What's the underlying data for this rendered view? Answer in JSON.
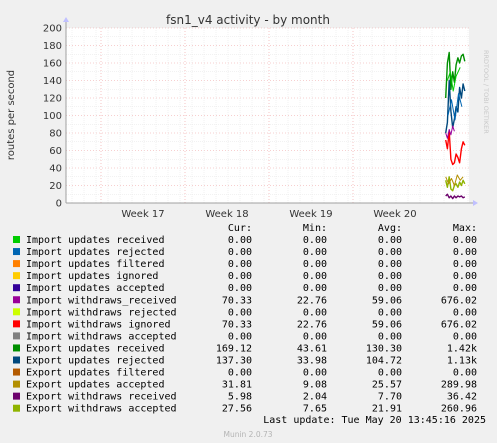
{
  "chart_data": {
    "type": "line",
    "title": "fsn1_v4 activity - by month",
    "ylabel": "routes per second",
    "side_label": "RRDTOOL / TOBI OETIKER",
    "ylim": [
      0,
      200
    ],
    "y_ticks": [
      0,
      10,
      20,
      30,
      40,
      50,
      60,
      70,
      80,
      90,
      100,
      110,
      120,
      130,
      140,
      150,
      160,
      170,
      180,
      190,
      200
    ],
    "x_ticks": [
      "Week 17",
      "Week 18",
      "Week 19",
      "Week 20"
    ],
    "grid": true,
    "legend_headers": [
      "Cur:",
      "Min:",
      "Avg:",
      "Max:"
    ],
    "series": [
      {
        "name": "Import updates received",
        "color": "#00cc00",
        "cur": "0.00",
        "min": "0.00",
        "avg": "0.00",
        "max": "0.00"
      },
      {
        "name": "Import updates rejected",
        "color": "#0066b3",
        "cur": "0.00",
        "min": "0.00",
        "avg": "0.00",
        "max": "0.00"
      },
      {
        "name": "Import updates filtered",
        "color": "#ff8000",
        "cur": "0.00",
        "min": "0.00",
        "avg": "0.00",
        "max": "0.00"
      },
      {
        "name": "Import updates ignored",
        "color": "#ffcc00",
        "cur": "0.00",
        "min": "0.00",
        "avg": "0.00",
        "max": "0.00"
      },
      {
        "name": "Import updates accepted",
        "color": "#330099",
        "cur": "0.00",
        "min": "0.00",
        "avg": "0.00",
        "max": "0.00"
      },
      {
        "name": "Import withdraws_received",
        "color": "#990099",
        "cur": "70.33",
        "min": "22.76",
        "avg": "59.06",
        "max": "676.02"
      },
      {
        "name": "Import withdraws rejected",
        "color": "#ccff00",
        "cur": "0.00",
        "min": "0.00",
        "avg": "0.00",
        "max": "0.00"
      },
      {
        "name": "Import withdraws ignored",
        "color": "#ff0000",
        "cur": "70.33",
        "min": "22.76",
        "avg": "59.06",
        "max": "676.02"
      },
      {
        "name": "Import withdraws accepted",
        "color": "#808080",
        "cur": "0.00",
        "min": "0.00",
        "avg": "0.00",
        "max": "0.00"
      },
      {
        "name": "Export updates received",
        "color": "#008f00",
        "cur": "169.12",
        "min": "43.61",
        "avg": "130.30",
        "max": "1.42k"
      },
      {
        "name": "Export updates rejected",
        "color": "#00487d",
        "cur": "137.30",
        "min": "33.98",
        "avg": "104.72",
        "max": "1.13k"
      },
      {
        "name": "Export updates filtered",
        "color": "#b35a00",
        "cur": "0.00",
        "min": "0.00",
        "avg": "0.00",
        "max": "0.00"
      },
      {
        "name": "Export updates accepted",
        "color": "#b38f00",
        "cur": "31.81",
        "min": "9.08",
        "avg": "25.57",
        "max": "289.98"
      },
      {
        "name": "Export withdraws received",
        "color": "#6b006b",
        "cur": "5.98",
        "min": "2.04",
        "avg": "7.70",
        "max": "36.42"
      },
      {
        "name": "Export withdraws accepted",
        "color": "#8fb300",
        "cur": "27.56",
        "min": "7.65",
        "avg": "21.91",
        "max": "260.96"
      }
    ],
    "traces": [
      {
        "color": "#008f00",
        "width": 1.4,
        "points": [
          [
            0.3,
            120
          ],
          [
            0.36,
            160
          ],
          [
            0.42,
            172
          ],
          [
            0.48,
            130
          ],
          [
            0.54,
            150
          ],
          [
            0.6,
            138
          ],
          [
            0.66,
            158
          ],
          [
            0.72,
            166
          ],
          [
            0.78,
            160
          ],
          [
            0.84,
            168
          ],
          [
            0.9,
            170
          ],
          [
            0.96,
            162
          ]
        ]
      },
      {
        "color": "#00cc00",
        "width": 1.0,
        "points": [
          [
            0.36,
            140
          ],
          [
            0.46,
            150
          ],
          [
            0.56,
            128
          ],
          [
            0.66,
            145
          ],
          [
            0.8,
            155
          ]
        ]
      },
      {
        "color": "#00487d",
        "width": 1.4,
        "points": [
          [
            0.3,
            80
          ],
          [
            0.36,
            92
          ],
          [
            0.42,
            140
          ],
          [
            0.48,
            105
          ],
          [
            0.54,
            86
          ],
          [
            0.6,
            96
          ],
          [
            0.66,
            110
          ],
          [
            0.72,
            104
          ],
          [
            0.78,
            132
          ],
          [
            0.84,
            120
          ],
          [
            0.9,
            136
          ],
          [
            0.96,
            128
          ]
        ]
      },
      {
        "color": "#0066b3",
        "width": 1.0,
        "points": [
          [
            0.38,
            100
          ],
          [
            0.5,
            118
          ],
          [
            0.62,
            95
          ],
          [
            0.74,
            125
          ],
          [
            0.86,
            110
          ]
        ]
      },
      {
        "color": "#ff0000",
        "width": 1.4,
        "points": [
          [
            0.3,
            72
          ],
          [
            0.36,
            62
          ],
          [
            0.42,
            82
          ],
          [
            0.48,
            50
          ],
          [
            0.54,
            44
          ],
          [
            0.6,
            46
          ],
          [
            0.66,
            56
          ],
          [
            0.72,
            52
          ],
          [
            0.78,
            46
          ],
          [
            0.84,
            62
          ],
          [
            0.9,
            70
          ],
          [
            0.96,
            66
          ]
        ]
      },
      {
        "color": "#990099",
        "width": 1.0,
        "points": [
          [
            0.3,
            80
          ],
          [
            0.36,
            74
          ],
          [
            0.42,
            84
          ],
          [
            0.48,
            78
          ],
          [
            0.54,
            88
          ],
          [
            0.6,
            82
          ]
        ]
      },
      {
        "color": "#8fb300",
        "width": 1.4,
        "points": [
          [
            0.3,
            26
          ],
          [
            0.36,
            18
          ],
          [
            0.42,
            30
          ],
          [
            0.48,
            16
          ],
          [
            0.54,
            14
          ],
          [
            0.6,
            20
          ],
          [
            0.66,
            22
          ],
          [
            0.72,
            18
          ],
          [
            0.78,
            24
          ],
          [
            0.84,
            20
          ],
          [
            0.9,
            26
          ],
          [
            0.96,
            22
          ]
        ]
      },
      {
        "color": "#b38f00",
        "width": 1.0,
        "points": [
          [
            0.3,
            30
          ],
          [
            0.4,
            22
          ],
          [
            0.5,
            28
          ],
          [
            0.6,
            20
          ],
          [
            0.7,
            32
          ],
          [
            0.8,
            26
          ],
          [
            0.9,
            30
          ]
        ]
      },
      {
        "color": "#6b006b",
        "width": 1.4,
        "points": [
          [
            0.3,
            8
          ],
          [
            0.36,
            10
          ],
          [
            0.42,
            6
          ],
          [
            0.48,
            8
          ],
          [
            0.54,
            5
          ],
          [
            0.6,
            8
          ],
          [
            0.66,
            6
          ],
          [
            0.72,
            8
          ],
          [
            0.78,
            7
          ],
          [
            0.84,
            8
          ],
          [
            0.9,
            6
          ],
          [
            0.96,
            7
          ]
        ]
      }
    ],
    "last_update": "Last update: Tue May 20 13:45:16 2025",
    "footer": "Munin 2.0.73"
  }
}
